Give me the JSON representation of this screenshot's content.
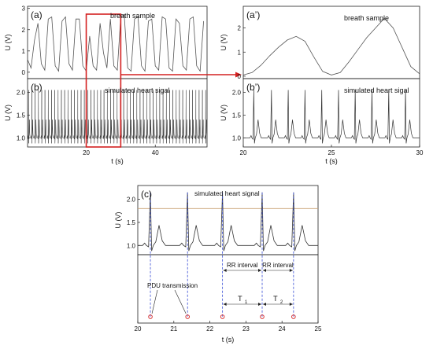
{
  "chart_data": [
    {
      "id": "a",
      "type": "line",
      "panel_label": "(a)",
      "annotation": "breath sample",
      "ylabel": "U (V)",
      "xlim": [
        3,
        55
      ],
      "ylim": [
        -0.3,
        3.1
      ],
      "yticks": [
        "0",
        "1",
        "2",
        "3"
      ],
      "ytick_values": [
        0,
        1,
        2,
        3
      ],
      "series": [
        {
          "x": [
            3,
            4,
            5,
            6,
            7,
            8,
            9,
            10,
            11,
            12,
            13,
            14,
            15,
            16,
            17,
            18,
            19,
            20,
            21,
            22,
            23,
            24,
            25,
            26,
            27,
            28,
            29,
            30,
            31,
            32,
            33,
            34,
            35,
            36,
            37,
            38,
            39,
            40,
            41,
            42,
            43,
            44,
            45,
            46,
            47,
            48,
            49,
            50,
            51,
            52,
            53,
            54
          ],
          "y": [
            0.6,
            0.2,
            1.5,
            2.3,
            0.4,
            0.1,
            2.5,
            2.6,
            0.3,
            0.05,
            2.4,
            2.6,
            0.4,
            0.1,
            2.5,
            2.5,
            0.3,
            0.05,
            1.7,
            0.3,
            0.1,
            2.3,
            0.9,
            0.2,
            2.5,
            0.3,
            0.1,
            2.6,
            2.7,
            0.2,
            0.05,
            2.5,
            2.6,
            0.3,
            0.05,
            2.4,
            2.5,
            0.3,
            0.1,
            2.6,
            2.5,
            0.2,
            0.05,
            2.5,
            2.3,
            0.3,
            0.1,
            2.5,
            2.6,
            0.3,
            0.05,
            2.4
          ]
        }
      ],
      "highlight": {
        "x": [
          20,
          30
        ]
      }
    },
    {
      "id": "b",
      "type": "line",
      "panel_label": "(b)",
      "annotation": "simulated heart sigal",
      "ylabel": "U (V)",
      "xlabel": "t (s)",
      "xlim": [
        3,
        55
      ],
      "ylim": [
        0.8,
        2.3
      ],
      "xticks": [
        "20",
        "40"
      ],
      "xtick_values": [
        20,
        40
      ],
      "yticks": [
        "1.0",
        "1.5",
        "2.0"
      ],
      "ytick_values": [
        1.0,
        1.5,
        2.0
      ],
      "series": [
        {
          "beat_period": 0.95,
          "baseline": 1.0,
          "peak": 2.05
        }
      ],
      "highlight": {
        "x": [
          20,
          30
        ]
      }
    },
    {
      "id": "a-prime",
      "type": "line",
      "panel_label": "(a’)",
      "annotation": "breath sample",
      "ylabel": "U (V)",
      "xlim": [
        20,
        30
      ],
      "ylim": [
        -0.1,
        2.9
      ],
      "yticks": [
        "0",
        "1",
        "2"
      ],
      "ytick_values": [
        0,
        1,
        2
      ],
      "series": [
        {
          "x": [
            20,
            20.5,
            21,
            21.5,
            22,
            22.5,
            23,
            23.5,
            24,
            24.5,
            25,
            25.5,
            26,
            26.5,
            27,
            27.5,
            28,
            28.5,
            29,
            29.5,
            30
          ],
          "y": [
            0.05,
            0.15,
            0.45,
            0.85,
            1.2,
            1.5,
            1.65,
            1.45,
            0.8,
            0.2,
            0.05,
            0.15,
            0.6,
            1.1,
            1.6,
            2.0,
            2.4,
            2.0,
            1.2,
            0.4,
            0.1
          ]
        }
      ]
    },
    {
      "id": "b-prime",
      "type": "line",
      "panel_label": "(b’)",
      "annotation": "simulated heart sigal",
      "ylabel": "U (V)",
      "xlabel": "t (s)",
      "xlim": [
        20,
        30
      ],
      "ylim": [
        0.8,
        2.3
      ],
      "xticks": [
        "20",
        "25",
        "30"
      ],
      "xtick_values": [
        20,
        25,
        30
      ],
      "yticks": [
        "1.0",
        "1.5",
        "2.0"
      ],
      "ytick_values": [
        1.0,
        1.5,
        2.0
      ],
      "series": [
        {
          "beat_times": [
            20.6,
            21.6,
            22.55,
            23.5,
            24.45,
            25.4,
            26.35,
            27.3,
            28.25,
            29.2
          ],
          "baseline": 1.0,
          "peak": 2.05
        }
      ]
    },
    {
      "id": "c",
      "type": "line",
      "panel_label": "(c)",
      "annotation": "simulated heart signal",
      "ylabel": "U (V)",
      "xlabel": "t (s)",
      "xlim": [
        20,
        25
      ],
      "ylim": [
        0.8,
        2.3
      ],
      "xticks": [
        "20",
        "21",
        "22",
        "23",
        "24",
        "25"
      ],
      "xtick_values": [
        20,
        21,
        22,
        23,
        24,
        25
      ],
      "yticks": [
        "1.0",
        "1.5",
        "2.0"
      ],
      "ytick_values": [
        1.0,
        1.5,
        2.0
      ],
      "threshold": 1.8,
      "series": [
        {
          "beat_times": [
            20.35,
            21.38,
            22.35,
            23.45,
            24.32
          ],
          "baseline": 1.0,
          "peak": 2.15
        }
      ],
      "pdu_times": [
        20.35,
        21.38,
        22.35,
        23.45,
        24.32
      ],
      "labels": {
        "pdu": "PDU transmission",
        "rr1": "RR interval",
        "rr2": "RR interval",
        "t1": "T",
        "t1_sub": "1",
        "t2": "T",
        "t2_sub": "2"
      }
    }
  ]
}
